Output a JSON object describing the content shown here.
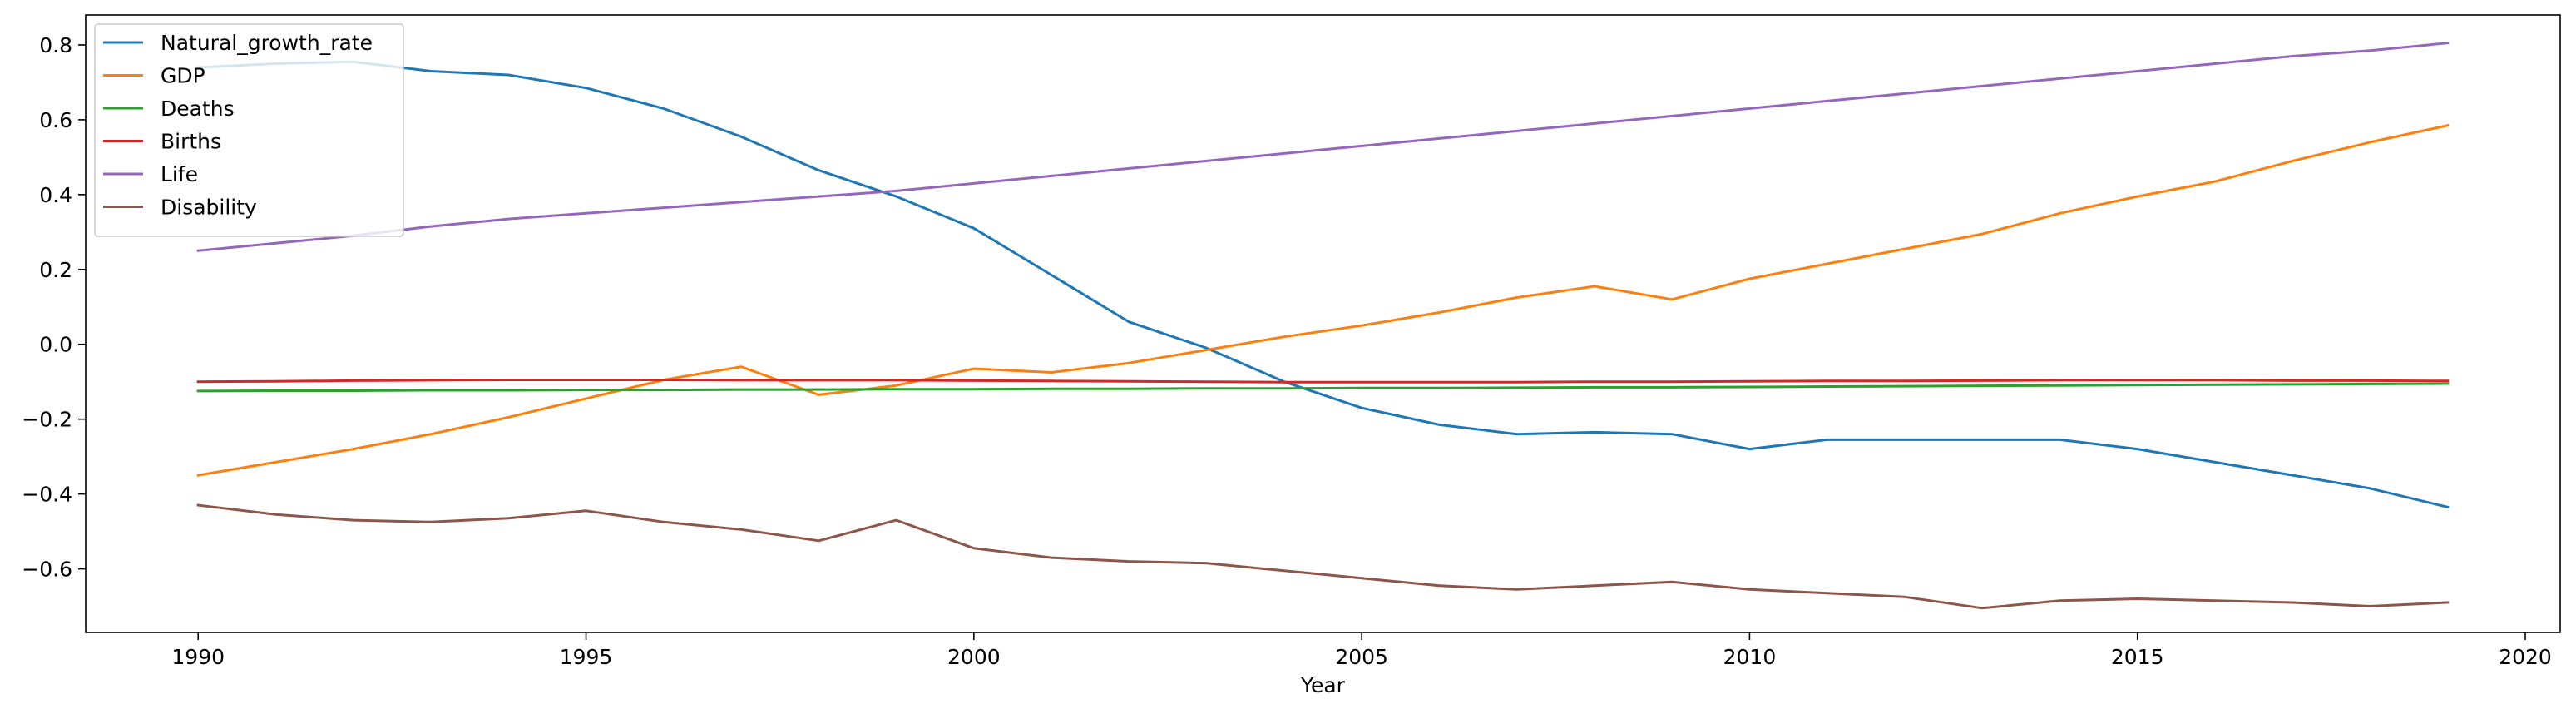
{
  "chart_data": {
    "type": "line",
    "title": "",
    "xlabel": "Year",
    "ylabel": "",
    "xlim": [
      1988.55,
      2020.45
    ],
    "ylim": [
      -0.77,
      0.88
    ],
    "grid": false,
    "legend_position": "top-left",
    "x_ticks": [
      {
        "value": 1990,
        "label": "1990"
      },
      {
        "value": 1995,
        "label": "1995"
      },
      {
        "value": 2000,
        "label": "2000"
      },
      {
        "value": 2005,
        "label": "2005"
      },
      {
        "value": 2010,
        "label": "2010"
      },
      {
        "value": 2015,
        "label": "2015"
      },
      {
        "value": 2020,
        "label": "2020"
      }
    ],
    "y_ticks": [
      {
        "value": -0.6,
        "label": "−0.6"
      },
      {
        "value": -0.4,
        "label": "−0.4"
      },
      {
        "value": -0.2,
        "label": "−0.2"
      },
      {
        "value": 0.0,
        "label": "0.0"
      },
      {
        "value": 0.2,
        "label": "0.2"
      },
      {
        "value": 0.4,
        "label": "0.4"
      },
      {
        "value": 0.6,
        "label": "0.6"
      },
      {
        "value": 0.8,
        "label": "0.8"
      }
    ],
    "x": [
      1990,
      1991,
      1992,
      1993,
      1994,
      1995,
      1996,
      1997,
      1998,
      1999,
      2000,
      2001,
      2002,
      2003,
      2004,
      2005,
      2006,
      2007,
      2008,
      2009,
      2010,
      2011,
      2012,
      2013,
      2014,
      2015,
      2016,
      2017,
      2018,
      2019
    ],
    "series": [
      {
        "name": "Natural_growth_rate",
        "color": "#1f77b4",
        "values": [
          0.74,
          0.75,
          0.755,
          0.73,
          0.72,
          0.685,
          0.63,
          0.555,
          0.465,
          0.395,
          0.31,
          0.185,
          0.06,
          -0.01,
          -0.1,
          -0.17,
          -0.215,
          -0.24,
          -0.235,
          -0.24,
          -0.28,
          -0.255,
          -0.255,
          -0.255,
          -0.255,
          -0.28,
          -0.315,
          -0.35,
          -0.385,
          -0.435
        ]
      },
      {
        "name": "GDP",
        "color": "#ff7f0e",
        "values": [
          -0.35,
          -0.315,
          -0.28,
          -0.24,
          -0.195,
          -0.145,
          -0.095,
          -0.06,
          -0.135,
          -0.11,
          -0.065,
          -0.075,
          -0.05,
          -0.015,
          0.02,
          0.05,
          0.085,
          0.125,
          0.155,
          0.12,
          0.175,
          0.215,
          0.255,
          0.295,
          0.35,
          0.395,
          0.435,
          0.49,
          0.54,
          0.585
        ]
      },
      {
        "name": "Deaths",
        "color": "#2ca02c",
        "values": [
          -0.125,
          -0.124,
          -0.124,
          -0.123,
          -0.123,
          -0.122,
          -0.122,
          -0.121,
          -0.121,
          -0.12,
          -0.12,
          -0.119,
          -0.119,
          -0.118,
          -0.118,
          -0.117,
          -0.117,
          -0.116,
          -0.115,
          -0.115,
          -0.114,
          -0.113,
          -0.112,
          -0.111,
          -0.11,
          -0.109,
          -0.108,
          -0.107,
          -0.106,
          -0.105
        ]
      },
      {
        "name": "Births",
        "color": "#d62728",
        "values": [
          -0.1,
          -0.099,
          -0.097,
          -0.096,
          -0.095,
          -0.095,
          -0.095,
          -0.096,
          -0.096,
          -0.096,
          -0.097,
          -0.098,
          -0.099,
          -0.1,
          -0.101,
          -0.101,
          -0.101,
          -0.101,
          -0.1,
          -0.1,
          -0.099,
          -0.098,
          -0.098,
          -0.097,
          -0.096,
          -0.096,
          -0.096,
          -0.097,
          -0.097,
          -0.098
        ]
      },
      {
        "name": "Life",
        "color": "#9467bd",
        "values": [
          0.25,
          0.27,
          0.29,
          0.315,
          0.335,
          0.35,
          0.365,
          0.38,
          0.395,
          0.41,
          0.43,
          0.45,
          0.47,
          0.49,
          0.51,
          0.53,
          0.55,
          0.57,
          0.59,
          0.61,
          0.63,
          0.65,
          0.67,
          0.69,
          0.71,
          0.73,
          0.75,
          0.77,
          0.785,
          0.805
        ]
      },
      {
        "name": "Disability",
        "color": "#8c564b",
        "values": [
          -0.43,
          -0.455,
          -0.47,
          -0.475,
          -0.465,
          -0.445,
          -0.475,
          -0.495,
          -0.525,
          -0.47,
          -0.545,
          -0.57,
          -0.58,
          -0.585,
          -0.605,
          -0.625,
          -0.645,
          -0.655,
          -0.645,
          -0.635,
          -0.655,
          -0.665,
          -0.675,
          -0.705,
          -0.685,
          -0.68,
          -0.685,
          -0.69,
          -0.7,
          -0.69
        ]
      }
    ]
  }
}
